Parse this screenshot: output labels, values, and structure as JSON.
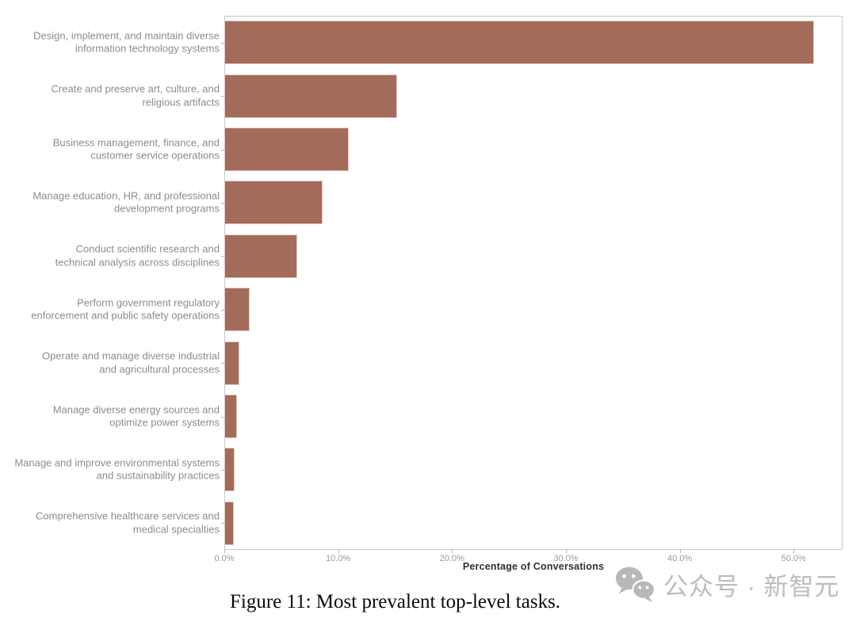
{
  "figure": {
    "caption": "Figure 11: Most prevalent top-level tasks.",
    "watermark": {
      "icon": "wechat-logo",
      "text": "公众号 · 新智元",
      "color": "#bcbcbc"
    }
  },
  "chart_data": {
    "type": "bar",
    "orientation": "horizontal",
    "title": "",
    "xlabel": "Percentage of Conversations",
    "ylabel": "",
    "xlim": [
      0,
      54.3
    ],
    "x_tick_values": [
      0,
      10,
      20,
      30,
      40,
      50
    ],
    "x_tick_labels": [
      "0.0%",
      "10.0%",
      "20.0%",
      "30.0%",
      "40.0%",
      "50.0%"
    ],
    "grid": false,
    "legend": null,
    "bar_color": "#a36b59",
    "categories": [
      "Design, implement, and maintain diverse\ninformation technology systems",
      "Create and preserve art, culture, and\nreligious artifacts",
      "Business management, finance, and\ncustomer service operations",
      "Manage education, HR, and professional\ndevelopment programs",
      "Conduct scientific research and\ntechnical analysis across disciplines",
      "Perform government regulatory\nenforcement and public safety operations",
      "Operate and manage diverse industrial\nand agricultural processes",
      "Manage diverse energy sources and\noptimize power systems",
      "Manage and improve environmental systems\nand sustainability practices",
      "Comprehensive healthcare services and\nmedical specialties"
    ],
    "values": [
      51.8,
      15.2,
      10.9,
      8.6,
      6.4,
      2.2,
      1.3,
      1.1,
      0.9,
      0.85
    ]
  },
  "style": {
    "spine_color": "#c9c9c9",
    "tick_color": "#b3b3b3",
    "category_label_color": "#8c8c8c",
    "tick_label_color": "#9a9a9a",
    "xlabel_color": "#303030"
  }
}
